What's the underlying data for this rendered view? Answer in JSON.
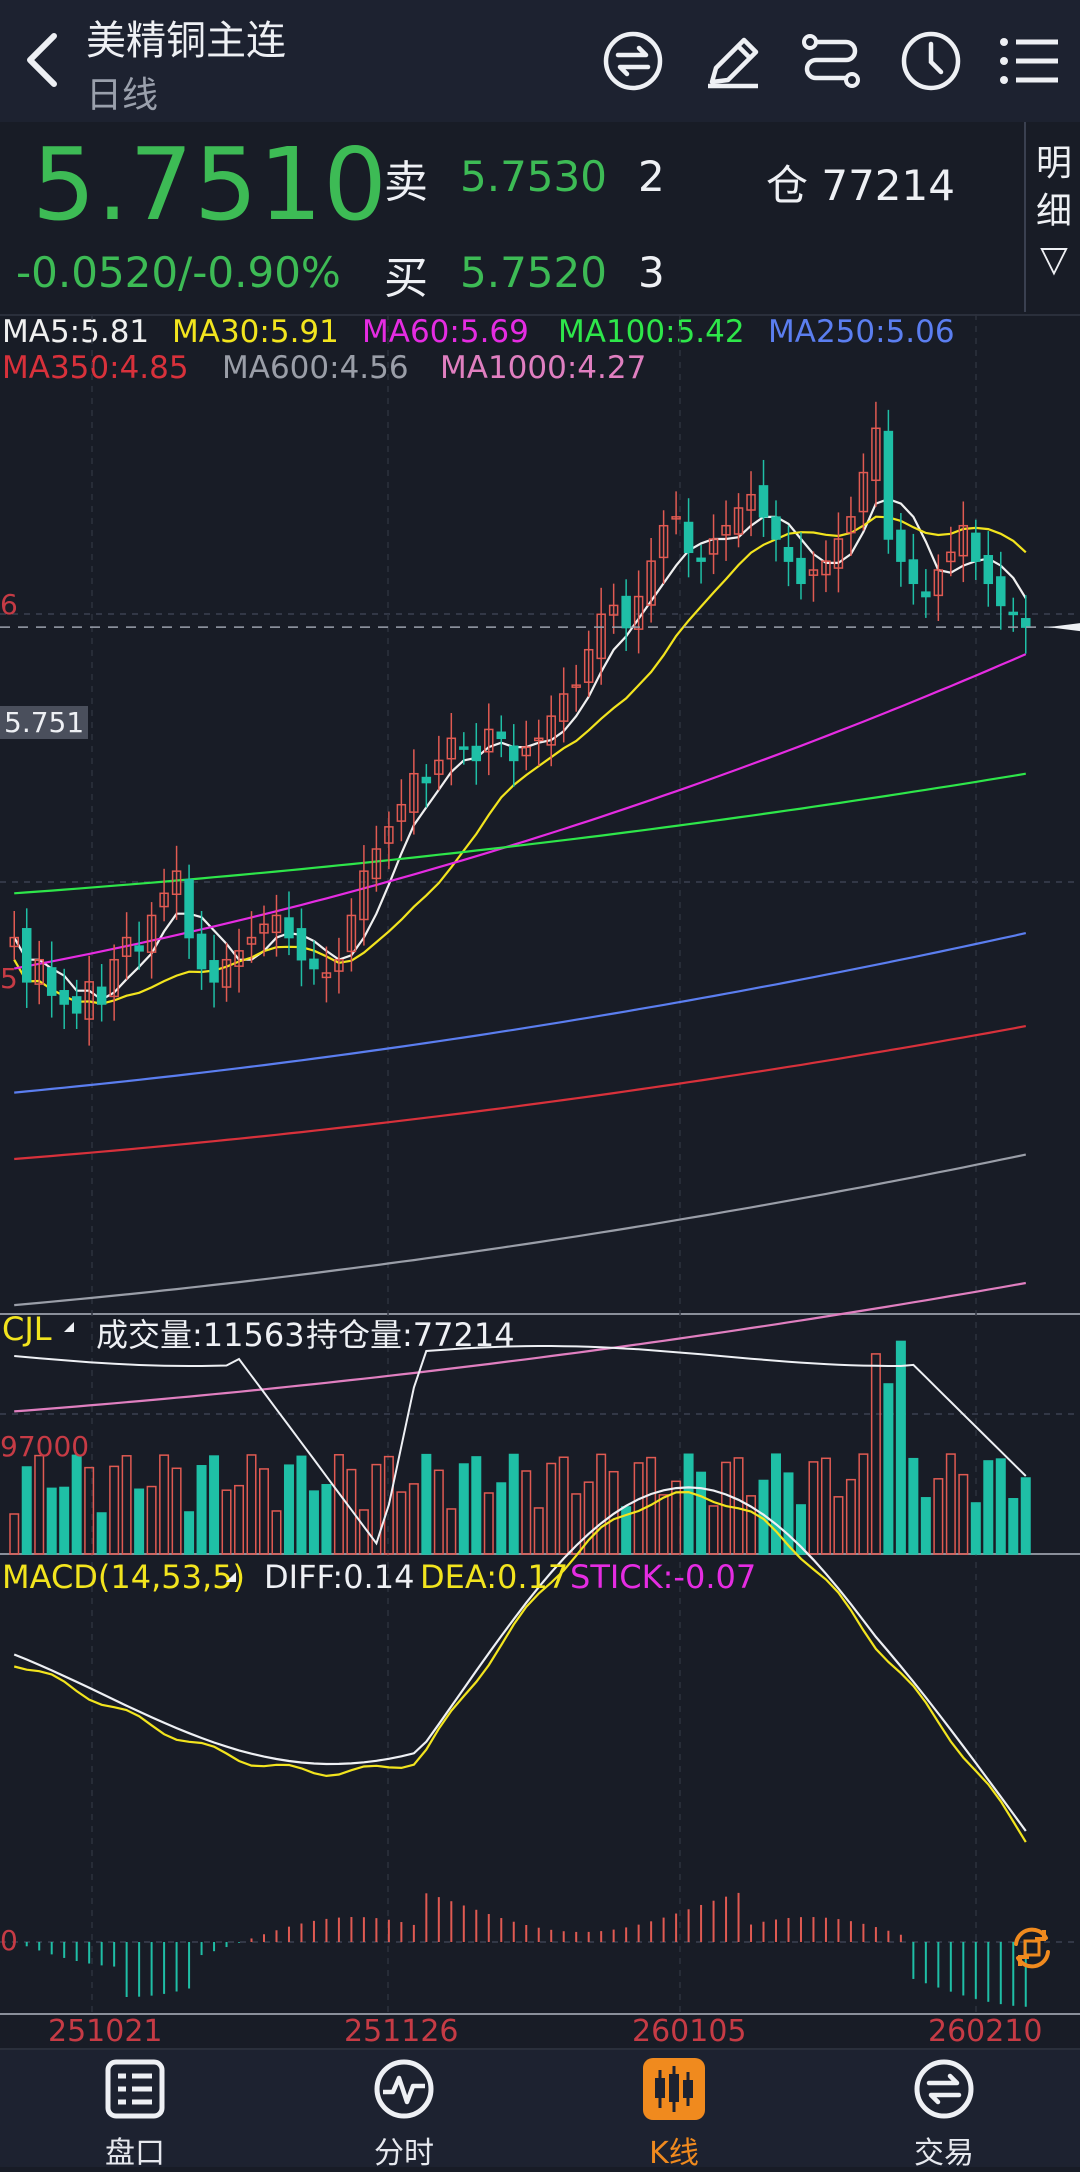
{
  "header": {
    "title": "美精铜主连",
    "subtitle": "日线",
    "icons": [
      "back-arrow-icon",
      "swap-icon",
      "draw-icon",
      "path-icon",
      "clock-icon",
      "menu-icon"
    ]
  },
  "quote": {
    "price": "5.7510",
    "change": "-0.0520/-0.90%",
    "sell_label": "卖",
    "sell_price": "5.7530",
    "sell_qty": "2",
    "buy_label": "买",
    "buy_price": "5.7520",
    "buy_qty": "3",
    "open_interest": "仓 77214",
    "detail_label_1": "明",
    "detail_label_2": "细",
    "detail_arrow": "▽",
    "color_down": "#3dbb55"
  },
  "ma_legend": {
    "ma5": "MA5:5.81",
    "ma30": "MA30:5.91",
    "ma60": "MA60:5.69",
    "ma100": "MA100:5.42",
    "ma250": "MA250:5.06",
    "ma350": "MA350:4.85",
    "ma600": "MA600:4.56",
    "ma1000": "MA1000:4.27"
  },
  "price_axis": {
    "tick_top": "6",
    "tick_mid": "5",
    "current": "5.751"
  },
  "volume": {
    "label": "CJL",
    "volume_text": "成交量:11563",
    "oi_text": "持仓量:77214",
    "tick": "97000"
  },
  "macd": {
    "label": "MACD(14,53,5)",
    "diff": "DIFF:0.14",
    "dea": "DEA:0.17",
    "stick": "STICK:-0.07",
    "zero_tick": "0"
  },
  "dates": [
    "251021",
    "251126",
    "260105",
    "260210"
  ],
  "nav": [
    {
      "label": "盘口",
      "icon": "order-book-icon"
    },
    {
      "label": "分时",
      "icon": "intraday-icon"
    },
    {
      "label": "K线",
      "icon": "candlestick-icon",
      "active": true
    },
    {
      "label": "交易",
      "icon": "trade-icon"
    }
  ],
  "chart_data": {
    "type": "candlestick",
    "title": "",
    "ylim": [
      4.2,
      6.3
    ],
    "closes": [
      5.05,
      4.95,
      5.0,
      4.92,
      4.9,
      4.88,
      4.95,
      4.9,
      5.0,
      5.05,
      5.02,
      5.1,
      5.15,
      5.2,
      5.05,
      4.98,
      4.95,
      5.0,
      5.02,
      5.05,
      5.08,
      5.1,
      5.05,
      5.0,
      4.98,
      4.97,
      5.0,
      5.1,
      5.2,
      5.25,
      5.3,
      5.35,
      5.42,
      5.4,
      5.45,
      5.5,
      5.48,
      5.45,
      5.52,
      5.5,
      5.45,
      5.48,
      5.5,
      5.55,
      5.6,
      5.62,
      5.7,
      5.78,
      5.8,
      5.75,
      5.82,
      5.9,
      5.98,
      6.0,
      5.92,
      5.9,
      5.95,
      5.98,
      6.02,
      6.05,
      6.0,
      5.95,
      5.9,
      5.85,
      5.88,
      5.9,
      5.95,
      6.0,
      6.1,
      6.2,
      5.95,
      5.9,
      5.85,
      5.82,
      5.88,
      5.92,
      5.98,
      5.9,
      5.85,
      5.8,
      5.78,
      5.751
    ],
    "ma_values": {
      "MA5": 5.81,
      "MA30": 5.91,
      "MA60": 5.69,
      "MA100": 5.42,
      "MA250": 5.06,
      "MA350": 4.85,
      "MA600": 4.56,
      "MA1000": 4.27
    },
    "volume_current": 11563,
    "open_interest_current": 77214,
    "macd_current": {
      "DIFF": 0.14,
      "DEA": 0.17,
      "STICK": -0.07
    },
    "x_labels": [
      "251021",
      "251126",
      "260105",
      "260210"
    ]
  }
}
